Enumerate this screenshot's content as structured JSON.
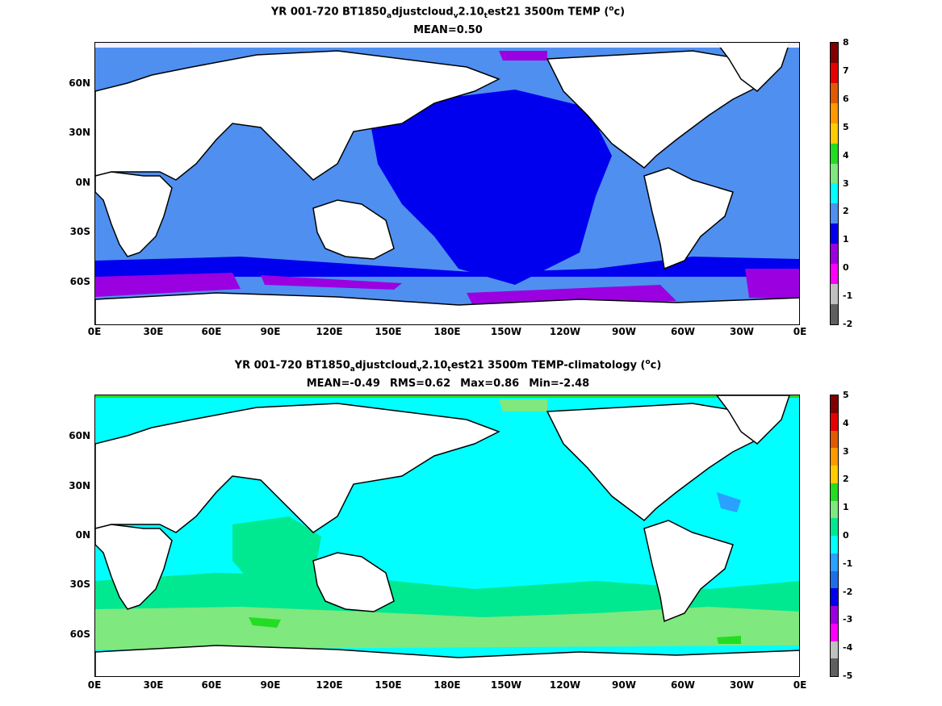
{
  "panel1": {
    "title_a": "YR 001-720 BT1850",
    "sub1": "a",
    "title_b": "djustcloud",
    "sub2": "v",
    "title_c": "2.10",
    "sub3": "t",
    "title_d": "est21 3500m TEMP (",
    "sup": "o",
    "title_e": "c)",
    "stats": [
      "MEAN=0.50"
    ],
    "colorbar_labels": [
      "8",
      "7",
      "6",
      "5",
      "4",
      "3",
      "2",
      "1",
      "0",
      "-1",
      "-2"
    ],
    "colorbar_colors": [
      "#800000",
      "#e60000",
      "#e05a00",
      "#ff9900",
      "#ffcc00",
      "#22dd22",
      "#7fe87f",
      "#00ffff",
      "#4f8ff0",
      "#0000ee",
      "#9a00e0",
      "#ff00ff",
      "#c0c0c0",
      "#606060"
    ]
  },
  "panel2": {
    "title_a": "YR 001-720 BT1850",
    "sub1": "a",
    "title_b": "djustcloud",
    "sub2": "v",
    "title_c": "2.10",
    "sub3": "t",
    "title_d": "est21 3500m TEMP-climatology (",
    "sup": "o",
    "title_e": "c)",
    "stats": [
      "MEAN=-0.49",
      "RMS=0.62",
      "Max=0.86",
      "Min=-2.48"
    ],
    "colorbar_labels": [
      "5",
      "4",
      "3",
      "2",
      "1",
      "0",
      "-1",
      "-2",
      "-3",
      "-4",
      "-5"
    ],
    "colorbar_colors": [
      "#800000",
      "#e60000",
      "#e05a00",
      "#ff9900",
      "#ffcc00",
      "#22dd22",
      "#7fe87f",
      "#00e890",
      "#00ffff",
      "#2aa0ff",
      "#1e6fe6",
      "#0000ee",
      "#9a00e0",
      "#ff00ff",
      "#c0c0c0",
      "#606060"
    ]
  },
  "lat_labels": [
    "60N",
    "30N",
    "0N",
    "30S",
    "60S"
  ],
  "lon_labels": [
    "0E",
    "30E",
    "60E",
    "90E",
    "120E",
    "150E",
    "180E",
    "150W",
    "120W",
    "90W",
    "60W",
    "30W",
    "0E"
  ]
}
